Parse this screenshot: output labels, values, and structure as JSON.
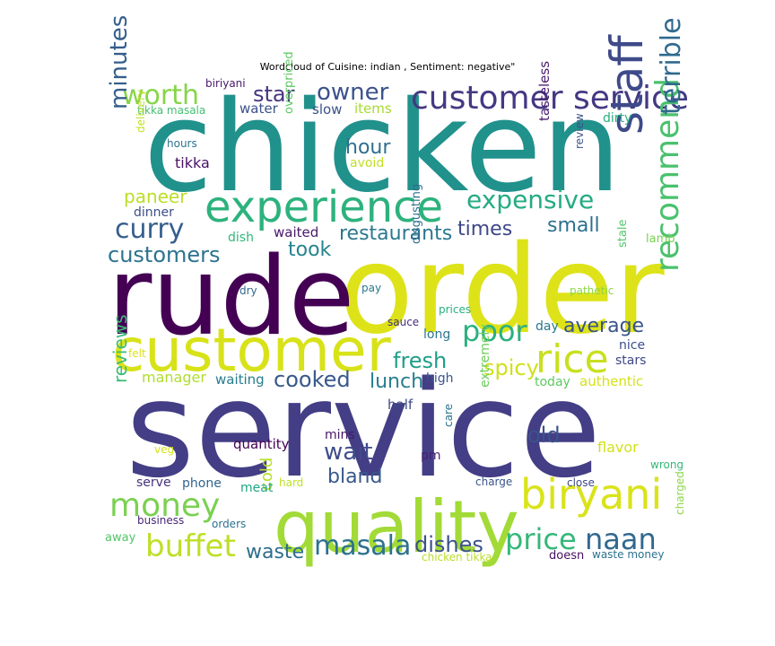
{
  "chart_data": {
    "type": "wordcloud",
    "title": "Wordcloud of Cuisine: indian , Sentiment: negative\"",
    "colors": {
      "background": "#ffffff",
      "palette": "viridis"
    },
    "words": [
      {
        "text": "chicken",
        "weight": 1.0,
        "orientation": "horizontal",
        "color": "#21918c"
      },
      {
        "text": "service",
        "weight": 0.96,
        "orientation": "horizontal",
        "color": "#433e85"
      },
      {
        "text": "order",
        "weight": 0.9,
        "orientation": "horizontal",
        "color": "#dde318"
      },
      {
        "text": "rude",
        "weight": 0.82,
        "orientation": "horizontal",
        "color": "#440154"
      },
      {
        "text": "quality",
        "weight": 0.62,
        "orientation": "horizontal",
        "color": "#a2da37"
      },
      {
        "text": "customer",
        "weight": 0.56,
        "orientation": "horizontal",
        "color": "#d8e219"
      },
      {
        "text": "experience",
        "weight": 0.38,
        "orientation": "horizontal",
        "color": "#2db27d"
      },
      {
        "text": "customer service",
        "weight": 0.32,
        "orientation": "horizontal",
        "color": "#443983"
      },
      {
        "text": "biryani",
        "weight": 0.4,
        "orientation": "horizontal",
        "color": "#dae319"
      },
      {
        "text": "staff",
        "weight": 0.42,
        "orientation": "vertical",
        "color": "#3e4a89"
      },
      {
        "text": "rice",
        "weight": 0.36,
        "orientation": "horizontal",
        "color": "#c8e020"
      },
      {
        "text": "recommend",
        "weight": 0.34,
        "orientation": "vertical",
        "color": "#4ac16d"
      },
      {
        "text": "terrible",
        "weight": 0.3,
        "orientation": "vertical",
        "color": "#306a8e"
      },
      {
        "text": "money",
        "weight": 0.27,
        "orientation": "horizontal",
        "color": "#7ad151"
      },
      {
        "text": "buffet",
        "weight": 0.27,
        "orientation": "horizontal",
        "color": "#bddf26"
      },
      {
        "text": "price",
        "weight": 0.27,
        "orientation": "horizontal",
        "color": "#35b779"
      },
      {
        "text": "naan",
        "weight": 0.27,
        "orientation": "horizontal",
        "color": "#31688e"
      },
      {
        "text": "masala",
        "weight": 0.25,
        "orientation": "horizontal",
        "color": "#2c728e"
      },
      {
        "text": "worth",
        "weight": 0.25,
        "orientation": "horizontal",
        "color": "#86d549"
      },
      {
        "text": "poor",
        "weight": 0.25,
        "orientation": "horizontal",
        "color": "#2ab07f"
      },
      {
        "text": "curry",
        "weight": 0.24,
        "orientation": "horizontal",
        "color": "#355f8d"
      },
      {
        "text": "minutes",
        "weight": 0.24,
        "orientation": "vertical",
        "color": "#355e8d"
      },
      {
        "text": "wait",
        "weight": 0.23,
        "orientation": "horizontal",
        "color": "#3e4c8a"
      },
      {
        "text": "expensive",
        "weight": 0.22,
        "orientation": "horizontal",
        "color": "#25ab82"
      },
      {
        "text": "owner",
        "weight": 0.21,
        "orientation": "horizontal",
        "color": "#3b528b"
      },
      {
        "text": "customers",
        "weight": 0.21,
        "orientation": "horizontal",
        "color": "#2c738e"
      },
      {
        "text": "fresh",
        "weight": 0.21,
        "orientation": "horizontal",
        "color": "#1f9e89"
      },
      {
        "text": "spicy",
        "weight": 0.2,
        "orientation": "horizontal",
        "color": "#d0e11c"
      },
      {
        "text": "average",
        "weight": 0.2,
        "orientation": "horizontal",
        "color": "#3a538b"
      },
      {
        "text": "dishes",
        "weight": 0.2,
        "orientation": "horizontal",
        "color": "#3b518b"
      },
      {
        "text": "star",
        "weight": 0.2,
        "orientation": "horizontal",
        "color": "#463480"
      },
      {
        "text": "cooked",
        "weight": 0.2,
        "orientation": "horizontal",
        "color": "#38588c"
      },
      {
        "text": "lunch",
        "weight": 0.2,
        "orientation": "horizontal",
        "color": "#277f8e"
      },
      {
        "text": "old",
        "weight": 0.2,
        "orientation": "horizontal",
        "color": "#3b528b"
      },
      {
        "text": "restaurants",
        "weight": 0.19,
        "orientation": "horizontal",
        "color": "#2a788e"
      },
      {
        "text": "took",
        "weight": 0.19,
        "orientation": "horizontal",
        "color": "#25848e"
      },
      {
        "text": "times",
        "weight": 0.19,
        "orientation": "horizontal",
        "color": "#3f4788"
      },
      {
        "text": "hour",
        "weight": 0.19,
        "orientation": "horizontal",
        "color": "#2e6f8e"
      },
      {
        "text": "small",
        "weight": 0.19,
        "orientation": "horizontal",
        "color": "#2d708e"
      },
      {
        "text": "bland",
        "weight": 0.19,
        "orientation": "horizontal",
        "color": "#38588c"
      },
      {
        "text": "waste",
        "weight": 0.19,
        "orientation": "horizontal",
        "color": "#2e6e8e"
      },
      {
        "text": "reviews",
        "weight": 0.17,
        "orientation": "vertical",
        "color": "#3aba76"
      },
      {
        "text": "paneer",
        "weight": 0.17,
        "orientation": "horizontal",
        "color": "#bade28"
      },
      {
        "text": "cold",
        "weight": 0.16,
        "orientation": "vertical",
        "color": "#b5de2b"
      },
      {
        "text": "tikka",
        "weight": 0.15,
        "orientation": "horizontal",
        "color": "#471063"
      },
      {
        "text": "flavor",
        "weight": 0.14,
        "orientation": "horizontal",
        "color": "#d2e21b"
      },
      {
        "text": "stars",
        "weight": 0.13,
        "orientation": "horizontal",
        "color": "#404688"
      },
      {
        "text": "manager",
        "weight": 0.13,
        "orientation": "horizontal",
        "color": "#b0dd2f"
      },
      {
        "text": "waiting",
        "weight": 0.13,
        "orientation": "horizontal",
        "color": "#287c8e"
      },
      {
        "text": "quantity",
        "weight": 0.13,
        "orientation": "horizontal",
        "color": "#440154"
      },
      {
        "text": "authentic",
        "weight": 0.13,
        "orientation": "horizontal",
        "color": "#d5e21a"
      },
      {
        "text": "half",
        "weight": 0.13,
        "orientation": "horizontal",
        "color": "#3f4889"
      },
      {
        "text": "tasteless",
        "weight": 0.13,
        "orientation": "vertical",
        "color": "#481b6d"
      },
      {
        "text": "water",
        "weight": 0.13,
        "orientation": "horizontal",
        "color": "#3b518b"
      },
      {
        "text": "items",
        "weight": 0.13,
        "orientation": "horizontal",
        "color": "#a8db34"
      },
      {
        "text": "phone",
        "weight": 0.12,
        "orientation": "horizontal",
        "color": "#32658e"
      },
      {
        "text": "today",
        "weight": 0.12,
        "orientation": "horizontal",
        "color": "#5ec962"
      },
      {
        "text": "mins",
        "weight": 0.12,
        "orientation": "horizontal",
        "color": "#481668"
      },
      {
        "text": "slow",
        "weight": 0.12,
        "orientation": "horizontal",
        "color": "#3b528b"
      },
      {
        "text": "avoid",
        "weight": 0.12,
        "orientation": "horizontal",
        "color": "#c2df23"
      },
      {
        "text": "dirty",
        "weight": 0.12,
        "orientation": "horizontal",
        "color": "#28ae80"
      },
      {
        "text": "extremely",
        "weight": 0.12,
        "orientation": "vertical",
        "color": "#6ccd5a"
      },
      {
        "text": "pm",
        "weight": 0.12,
        "orientation": "horizontal",
        "color": "#482173"
      },
      {
        "text": "dish",
        "weight": 0.12,
        "orientation": "horizontal",
        "color": "#32b67a"
      },
      {
        "text": "waited",
        "weight": 0.12,
        "orientation": "horizontal",
        "color": "#481769"
      },
      {
        "text": "high",
        "weight": 0.12,
        "orientation": "horizontal",
        "color": "#3a548c"
      },
      {
        "text": "day",
        "weight": 0.12,
        "orientation": "horizontal",
        "color": "#2a778e"
      },
      {
        "text": "nice",
        "weight": 0.11,
        "orientation": "horizontal",
        "color": "#3d4d8a"
      },
      {
        "text": "meat",
        "weight": 0.11,
        "orientation": "horizontal",
        "color": "#21a685"
      },
      {
        "text": "long",
        "weight": 0.11,
        "orientation": "horizontal",
        "color": "#2a768e"
      },
      {
        "text": "serve",
        "weight": 0.11,
        "orientation": "horizontal",
        "color": "#46327e"
      },
      {
        "text": "dinner",
        "weight": 0.11,
        "orientation": "horizontal",
        "color": "#3d4e8a"
      },
      {
        "text": "overpriced",
        "weight": 0.11,
        "orientation": "vertical",
        "color": "#5cc863"
      },
      {
        "text": "biriyani",
        "weight": 0.1,
        "orientation": "horizontal",
        "color": "#48186a"
      },
      {
        "text": "tikka masala",
        "weight": 0.1,
        "orientation": "horizontal",
        "color": "#44bf70"
      },
      {
        "text": "hours",
        "weight": 0.1,
        "orientation": "horizontal",
        "color": "#2c738e"
      },
      {
        "text": "delivery",
        "weight": 0.1,
        "orientation": "vertical",
        "color": "#c0df25"
      },
      {
        "text": "review",
        "weight": 0.1,
        "orientation": "vertical",
        "color": "#3b528b"
      },
      {
        "text": "lamb",
        "weight": 0.1,
        "orientation": "horizontal",
        "color": "#7ad151"
      },
      {
        "text": "stale",
        "weight": 0.1,
        "orientation": "vertical",
        "color": "#52c569"
      },
      {
        "text": "pathetic",
        "weight": 0.1,
        "orientation": "horizontal",
        "color": "#8bd646"
      },
      {
        "text": "disgusting",
        "weight": 0.1,
        "orientation": "vertical",
        "color": "#2e6e8e"
      },
      {
        "text": "pay",
        "weight": 0.1,
        "orientation": "horizontal",
        "color": "#2a788e"
      },
      {
        "text": "dry",
        "weight": 0.1,
        "orientation": "horizontal",
        "color": "#31688e"
      },
      {
        "text": "prices",
        "weight": 0.1,
        "orientation": "horizontal",
        "color": "#2ab07f"
      },
      {
        "text": "sauce",
        "weight": 0.1,
        "orientation": "horizontal",
        "color": "#46307e"
      },
      {
        "text": "felt",
        "weight": 0.09,
        "orientation": "horizontal",
        "color": "#dde318"
      },
      {
        "text": "care",
        "weight": 0.09,
        "orientation": "vertical",
        "color": "#2c728e"
      },
      {
        "text": "veg",
        "weight": 0.09,
        "orientation": "horizontal",
        "color": "#d5e21a"
      },
      {
        "text": "hard",
        "weight": 0.09,
        "orientation": "horizontal",
        "color": "#bddf26"
      },
      {
        "text": "charge",
        "weight": 0.09,
        "orientation": "horizontal",
        "color": "#3a548c"
      },
      {
        "text": "close",
        "weight": 0.09,
        "orientation": "horizontal",
        "color": "#3e4a89"
      },
      {
        "text": "wrong",
        "weight": 0.09,
        "orientation": "horizontal",
        "color": "#35b779"
      },
      {
        "text": "business",
        "weight": 0.09,
        "orientation": "horizontal",
        "color": "#482878"
      },
      {
        "text": "orders",
        "weight": 0.09,
        "orientation": "horizontal",
        "color": "#2c728e"
      },
      {
        "text": "away",
        "weight": 0.09,
        "orientation": "horizontal",
        "color": "#52c569"
      },
      {
        "text": "chicken tikka",
        "weight": 0.09,
        "orientation": "horizontal",
        "color": "#bade28"
      },
      {
        "text": "doesn",
        "weight": 0.09,
        "orientation": "horizontal",
        "color": "#471063"
      },
      {
        "text": "waste money",
        "weight": 0.09,
        "orientation": "horizontal",
        "color": "#2c728e"
      },
      {
        "text": "charged",
        "weight": 0.09,
        "orientation": "vertical",
        "color": "#8bd646"
      }
    ]
  }
}
